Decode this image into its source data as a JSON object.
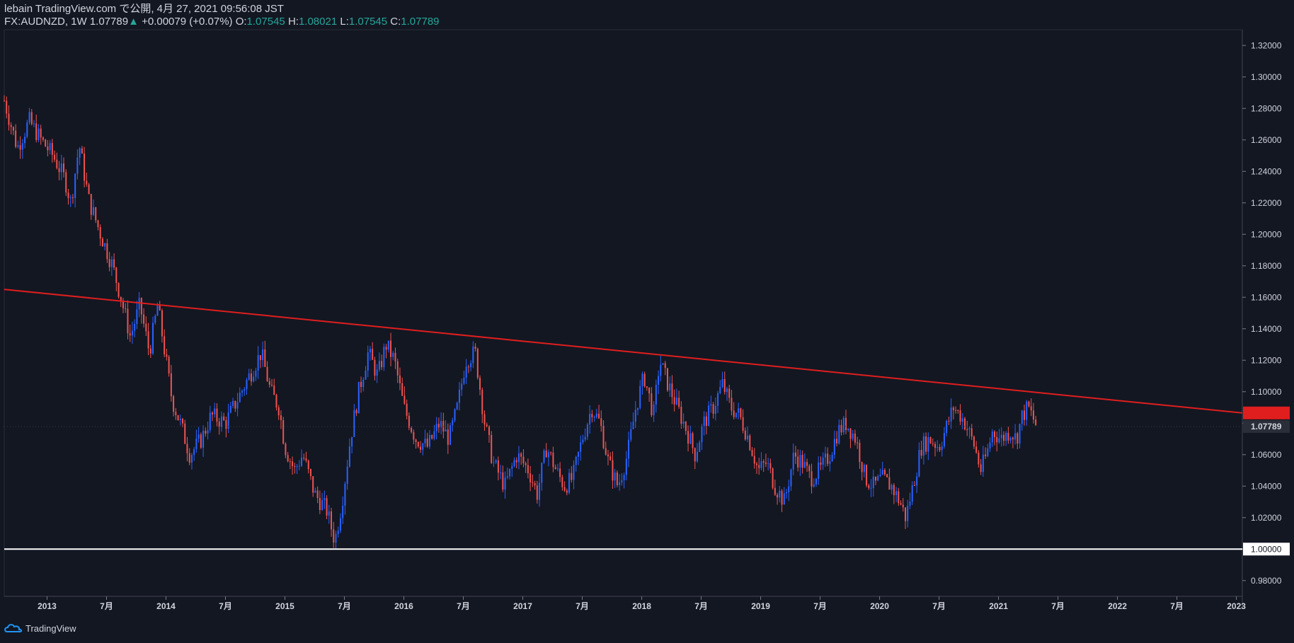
{
  "header": {
    "publisher_line": "lebain TradingView.com で公開, 4月 27, 2021 09:56:08 JST",
    "symbol_line": "FX:AUDNZD, 1W 1.07789",
    "change": "+0.00079 (+0.07%)",
    "open_label": "O:",
    "open": "1.07545",
    "high_label": "H:",
    "high": "1.08021",
    "low_label": "L:",
    "low": "1.07545",
    "close_label": "C:",
    "close": "1.07789"
  },
  "footer": {
    "brand": "TradingView"
  },
  "colors": {
    "background": "#131722",
    "up": "#2962ff",
    "down": "#ef5350",
    "trendline": "#e01e1e",
    "support": "#ffffff",
    "text": "#d1d4dc",
    "price_up": "#26a69a"
  },
  "chart_data": {
    "type": "candlestick",
    "title": "FX:AUDNZD, 1W",
    "ylim": [
      0.97,
      1.33
    ],
    "y_ticks": [
      "1.32000",
      "1.30000",
      "1.28000",
      "1.26000",
      "1.24000",
      "1.22000",
      "1.20000",
      "1.18000",
      "1.16000",
      "1.14000",
      "1.12000",
      "1.10000",
      "1.08000",
      "1.06000",
      "1.04000",
      "1.02000",
      "1.00000",
      "0.98000"
    ],
    "x_ticks": [
      "2013",
      "7月",
      "2014",
      "7月",
      "2015",
      "7月",
      "2016",
      "7月",
      "2017",
      "7月",
      "2018",
      "7月",
      "2019",
      "7月",
      "2020",
      "7月",
      "2021",
      "7月",
      "2022",
      "7月",
      "2023"
    ],
    "x_tick_years": [
      2013.0,
      2013.5,
      2014.0,
      2014.5,
      2015.0,
      2015.5,
      2016.0,
      2016.5,
      2017.0,
      2017.5,
      2018.0,
      2018.5,
      2019.0,
      2019.5,
      2020.0,
      2020.5,
      2021.0,
      2021.5,
      2022.0,
      2022.5,
      2023.0
    ],
    "xlim": [
      2012.64,
      2023.05
    ],
    "last_price": "1.07789",
    "support_level": "1.00000",
    "trendline": {
      "start": [
        2012.64,
        1.165
      ],
      "end": [
        2023.05,
        1.0865
      ]
    },
    "price_path": [
      [
        2012.64,
        1.285
      ],
      [
        2012.75,
        1.255
      ],
      [
        2012.85,
        1.272
      ],
      [
        2012.95,
        1.26
      ],
      [
        2013.05,
        1.25
      ],
      [
        2013.15,
        1.235
      ],
      [
        2013.2,
        1.22
      ],
      [
        2013.27,
        1.257
      ],
      [
        2013.35,
        1.222
      ],
      [
        2013.45,
        1.2
      ],
      [
        2013.55,
        1.18
      ],
      [
        2013.62,
        1.16
      ],
      [
        2013.7,
        1.135
      ],
      [
        2013.78,
        1.155
      ],
      [
        2013.86,
        1.125
      ],
      [
        2013.93,
        1.155
      ],
      [
        2014.0,
        1.12
      ],
      [
        2014.05,
        1.095
      ],
      [
        2014.12,
        1.08
      ],
      [
        2014.2,
        1.06
      ],
      [
        2014.3,
        1.07
      ],
      [
        2014.38,
        1.085
      ],
      [
        2014.5,
        1.08
      ],
      [
        2014.6,
        1.095
      ],
      [
        2014.7,
        1.11
      ],
      [
        2014.8,
        1.125
      ],
      [
        2014.88,
        1.1
      ],
      [
        2014.95,
        1.09
      ],
      [
        2015.0,
        1.065
      ],
      [
        2015.08,
        1.05
      ],
      [
        2015.15,
        1.06
      ],
      [
        2015.25,
        1.035
      ],
      [
        2015.35,
        1.025
      ],
      [
        2015.42,
        1.005
      ],
      [
        2015.48,
        1.03
      ],
      [
        2015.55,
        1.07
      ],
      [
        2015.62,
        1.1
      ],
      [
        2015.7,
        1.125
      ],
      [
        2015.78,
        1.11
      ],
      [
        2015.85,
        1.13
      ],
      [
        2015.92,
        1.12
      ],
      [
        2016.0,
        1.09
      ],
      [
        2016.1,
        1.07
      ],
      [
        2016.2,
        1.065
      ],
      [
        2016.3,
        1.08
      ],
      [
        2016.38,
        1.07
      ],
      [
        2016.45,
        1.09
      ],
      [
        2016.52,
        1.12
      ],
      [
        2016.6,
        1.125
      ],
      [
        2016.68,
        1.08
      ],
      [
        2016.75,
        1.055
      ],
      [
        2016.85,
        1.04
      ],
      [
        2016.95,
        1.06
      ],
      [
        2017.05,
        1.05
      ],
      [
        2017.12,
        1.035
      ],
      [
        2017.2,
        1.065
      ],
      [
        2017.28,
        1.05
      ],
      [
        2017.35,
        1.04
      ],
      [
        2017.42,
        1.045
      ],
      [
        2017.5,
        1.07
      ],
      [
        2017.58,
        1.09
      ],
      [
        2017.65,
        1.08
      ],
      [
        2017.72,
        1.055
      ],
      [
        2017.8,
        1.04
      ],
      [
        2017.88,
        1.06
      ],
      [
        2017.95,
        1.09
      ],
      [
        2018.02,
        1.11
      ],
      [
        2018.1,
        1.085
      ],
      [
        2018.15,
        1.12
      ],
      [
        2018.22,
        1.105
      ],
      [
        2018.3,
        1.09
      ],
      [
        2018.38,
        1.075
      ],
      [
        2018.45,
        1.06
      ],
      [
        2018.52,
        1.08
      ],
      [
        2018.6,
        1.09
      ],
      [
        2018.68,
        1.105
      ],
      [
        2018.75,
        1.09
      ],
      [
        2018.82,
        1.085
      ],
      [
        2018.9,
        1.07
      ],
      [
        2018.98,
        1.05
      ],
      [
        2019.05,
        1.055
      ],
      [
        2019.12,
        1.04
      ],
      [
        2019.2,
        1.03
      ],
      [
        2019.28,
        1.06
      ],
      [
        2019.35,
        1.055
      ],
      [
        2019.42,
        1.045
      ],
      [
        2019.5,
        1.05
      ],
      [
        2019.58,
        1.06
      ],
      [
        2019.65,
        1.075
      ],
      [
        2019.72,
        1.08
      ],
      [
        2019.8,
        1.07
      ],
      [
        2019.88,
        1.045
      ],
      [
        2019.95,
        1.04
      ],
      [
        2020.02,
        1.045
      ],
      [
        2020.1,
        1.04
      ],
      [
        2020.17,
        1.03
      ],
      [
        2020.22,
        1.02
      ],
      [
        2020.28,
        1.04
      ],
      [
        2020.35,
        1.065
      ],
      [
        2020.42,
        1.07
      ],
      [
        2020.5,
        1.065
      ],
      [
        2020.55,
        1.075
      ],
      [
        2020.62,
        1.09
      ],
      [
        2020.68,
        1.085
      ],
      [
        2020.72,
        1.08
      ],
      [
        2020.8,
        1.065
      ],
      [
        2020.85,
        1.05
      ],
      [
        2020.9,
        1.06
      ],
      [
        2020.95,
        1.075
      ],
      [
        2021.02,
        1.07
      ],
      [
        2021.1,
        1.075
      ],
      [
        2021.15,
        1.07
      ],
      [
        2021.2,
        1.085
      ],
      [
        2021.25,
        1.09
      ],
      [
        2021.32,
        1.078
      ]
    ]
  }
}
